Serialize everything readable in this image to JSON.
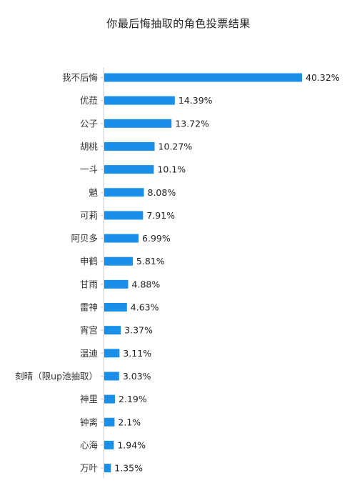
{
  "chart_data": {
    "type": "bar",
    "orientation": "horizontal",
    "title": "你最后悔抽取的角色投票结果",
    "categories": [
      "我不后悔",
      "优菈",
      "公子",
      "胡桃",
      "一斗",
      "魈",
      "可莉",
      "阿贝多",
      "申鹤",
      "甘雨",
      "雷神",
      "宵宫",
      "温迪",
      "刻晴（限up池抽取）",
      "神里",
      "钟离",
      "心海",
      "万叶"
    ],
    "values": [
      40.32,
      14.39,
      13.72,
      10.27,
      10.1,
      8.08,
      7.91,
      6.99,
      5.81,
      4.88,
      4.63,
      3.37,
      3.11,
      3.03,
      2.19,
      2.1,
      1.94,
      1.35
    ],
    "value_labels": [
      "40.32%",
      "14.39%",
      "13.72%",
      "10.27%",
      "10.1%",
      "8.08%",
      "7.91%",
      "6.99%",
      "5.81%",
      "4.88%",
      "4.63%",
      "3.37%",
      "3.11%",
      "3.03%",
      "2.19%",
      "2.1%",
      "1.94%",
      "1.35%"
    ],
    "xlim": [
      0,
      40.32
    ],
    "grid": false,
    "legend": "none",
    "bar_color": "#1a8fe8"
  }
}
